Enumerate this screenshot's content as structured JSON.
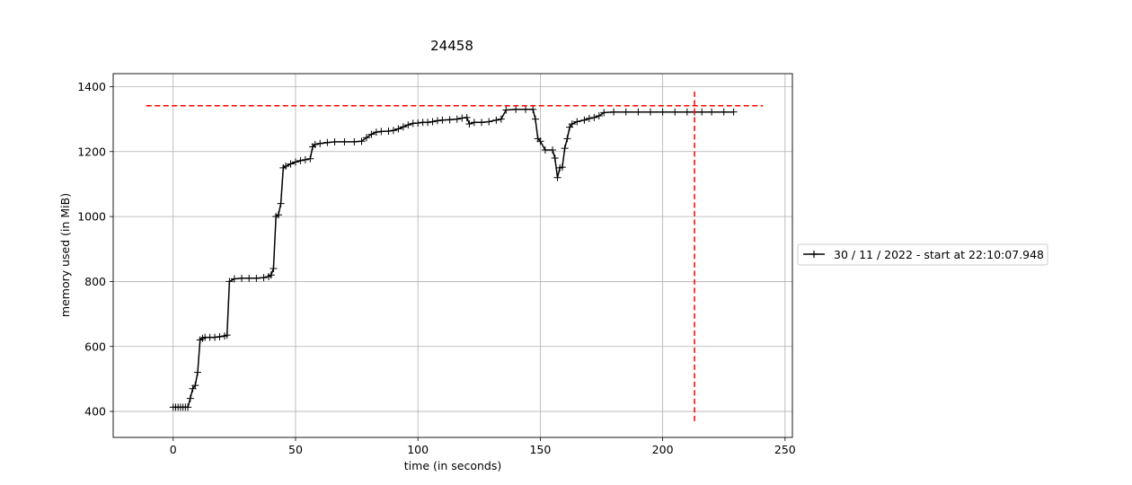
{
  "chart_data": {
    "type": "line",
    "title": "24458",
    "xlabel": "time (in seconds)",
    "ylabel": "memory used (in MiB)",
    "xlim": [
      -24.5,
      253
    ],
    "ylim": [
      320,
      1440
    ],
    "xticks": [
      0,
      50,
      100,
      150,
      200,
      250
    ],
    "yticks": [
      400,
      600,
      800,
      1000,
      1200,
      1400
    ],
    "grid": true,
    "legend_placement": "right, outside plot",
    "series": [
      {
        "name": "30 / 11 / 2022 - start at 22:10:07.948",
        "color": "#000000",
        "marker": "+",
        "x": [
          0,
          1,
          2,
          3,
          4,
          5,
          6,
          7,
          8,
          9,
          10,
          11,
          12,
          13,
          15,
          17,
          19,
          21,
          22,
          23,
          25,
          28,
          31,
          34,
          37,
          39,
          40,
          41,
          42,
          43,
          44,
          45,
          46,
          48,
          50,
          52,
          54,
          56,
          57,
          58,
          60,
          63,
          66,
          70,
          74,
          77,
          79,
          81,
          83,
          85,
          88,
          90,
          92,
          94,
          96,
          98,
          100,
          102,
          104,
          106,
          108,
          110,
          113,
          116,
          118,
          120,
          121,
          123,
          126,
          129,
          132,
          134,
          136,
          140,
          144,
          147,
          148,
          149,
          150,
          152,
          155,
          156,
          157,
          158,
          159,
          160,
          161,
          162,
          163,
          165,
          168,
          170,
          172,
          174,
          176,
          180,
          185,
          190,
          195,
          200,
          205,
          210,
          213,
          216,
          220,
          225,
          229
        ],
        "y": [
          413,
          413,
          413,
          413,
          413,
          413,
          413,
          440,
          470,
          480,
          520,
          620,
          625,
          628,
          628,
          628,
          630,
          632,
          635,
          800,
          808,
          810,
          810,
          810,
          812,
          815,
          820,
          840,
          1000,
          1005,
          1040,
          1150,
          1155,
          1162,
          1168,
          1172,
          1175,
          1178,
          1215,
          1222,
          1225,
          1228,
          1230,
          1230,
          1230,
          1232,
          1243,
          1253,
          1260,
          1262,
          1263,
          1265,
          1270,
          1276,
          1282,
          1287,
          1288,
          1290,
          1290,
          1292,
          1295,
          1297,
          1298,
          1300,
          1303,
          1305,
          1285,
          1290,
          1290,
          1292,
          1297,
          1300,
          1328,
          1330,
          1330,
          1330,
          1300,
          1240,
          1232,
          1205,
          1205,
          1180,
          1120,
          1150,
          1152,
          1210,
          1240,
          1275,
          1285,
          1292,
          1297,
          1302,
          1305,
          1310,
          1320,
          1322,
          1322,
          1322,
          1322,
          1322,
          1322,
          1322,
          1322,
          1322,
          1322,
          1322,
          1322
        ]
      }
    ],
    "reference_lines": [
      {
        "orientation": "horizontal",
        "value": 1341,
        "from": -11,
        "to": 241,
        "color": "#ff0000",
        "style": "dashed"
      },
      {
        "orientation": "vertical",
        "value": 213,
        "from": 370,
        "to": 1385,
        "color": "#ff0000",
        "style": "dashed"
      }
    ]
  }
}
